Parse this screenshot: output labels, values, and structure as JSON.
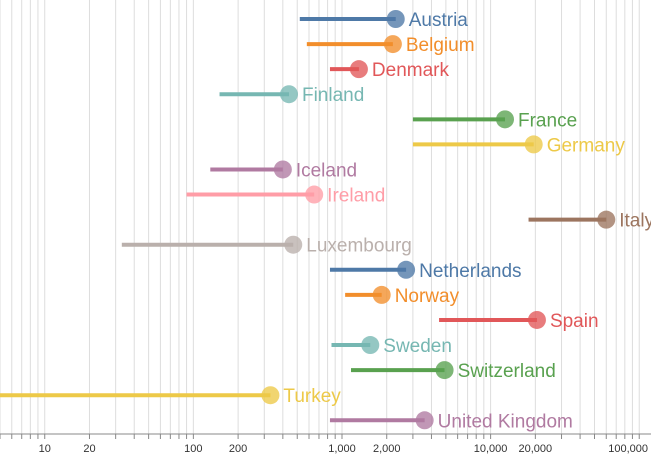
{
  "chart_data": {
    "type": "scatter",
    "xscale": "log",
    "xlim": [
      5,
      120000
    ],
    "tick_labels": [
      {
        "value": 10,
        "label": "10"
      },
      {
        "value": 20,
        "label": "20"
      },
      {
        "value": 100,
        "label": "100"
      },
      {
        "value": 200,
        "label": "200"
      },
      {
        "value": 1000,
        "label": "1,000"
      },
      {
        "value": 2000,
        "label": "2,000"
      },
      {
        "value": 10000,
        "label": "10,000"
      },
      {
        "value": 20000,
        "label": "20,000"
      },
      {
        "value": 100000,
        "label": "100,000"
      }
    ],
    "grid": true,
    "series": [
      {
        "name": "Austria",
        "start": 520,
        "end": 2300,
        "color": "#4e79a7"
      },
      {
        "name": "Belgium",
        "start": 580,
        "end": 2200,
        "color": "#f28e2b"
      },
      {
        "name": "Denmark",
        "start": 830,
        "end": 1300,
        "color": "#e15759"
      },
      {
        "name": "Finland",
        "start": 150,
        "end": 440,
        "color": "#76b7b2"
      },
      {
        "name": "France",
        "start": 3000,
        "end": 12500,
        "color": "#59a14f"
      },
      {
        "name": "Germany",
        "start": 3000,
        "end": 19500,
        "color": "#edc948"
      },
      {
        "name": "Iceland",
        "start": 130,
        "end": 400,
        "color": "#b07aa1"
      },
      {
        "name": "Ireland",
        "start": 90,
        "end": 650,
        "color": "#ff9da7"
      },
      {
        "name": "Italy",
        "start": 18000,
        "end": 60000,
        "color": "#9c755f"
      },
      {
        "name": "Luxembourg",
        "start": 33,
        "end": 470,
        "color": "#bab0ac"
      },
      {
        "name": "Netherlands",
        "start": 830,
        "end": 2700,
        "color": "#4e79a7"
      },
      {
        "name": "Norway",
        "start": 1050,
        "end": 1850,
        "color": "#f28e2b"
      },
      {
        "name": "Spain",
        "start": 4500,
        "end": 20500,
        "color": "#e15759"
      },
      {
        "name": "Sweden",
        "start": 850,
        "end": 1550,
        "color": "#76b7b2"
      },
      {
        "name": "Switzerland",
        "start": 1150,
        "end": 4900,
        "color": "#59a14f"
      },
      {
        "name": "Turkey",
        "start": 5,
        "end": 330,
        "color": "#edc948"
      },
      {
        "name": "United Kingdom",
        "start": 830,
        "end": 3600,
        "color": "#b07aa1"
      }
    ]
  }
}
